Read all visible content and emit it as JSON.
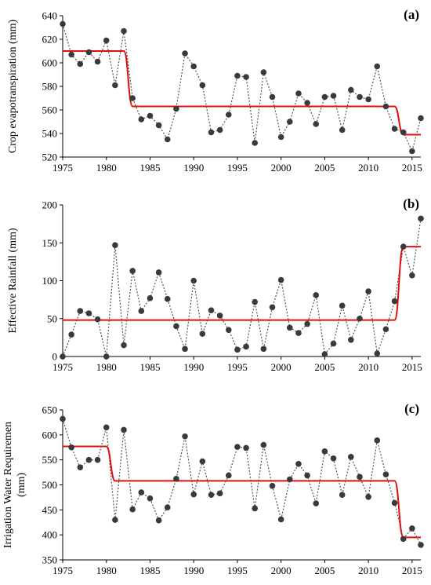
{
  "colors": {
    "points": "#3a3a3a",
    "connector": "#555555",
    "trend": "#e01010",
    "axis": "#000000"
  },
  "chart_data": [
    {
      "type": "line",
      "panel_label": "(a)",
      "ylabel": "Crop evapotranspiration (mm)",
      "xlim": [
        1975,
        2016
      ],
      "ylim": [
        520,
        640
      ],
      "xticks": [
        1975,
        1980,
        1985,
        1990,
        1995,
        2000,
        2005,
        2010,
        2015
      ],
      "yticks": [
        520,
        540,
        560,
        580,
        600,
        620,
        640
      ],
      "grid": false,
      "x": [
        1975,
        1976,
        1977,
        1978,
        1979,
        1980,
        1981,
        1982,
        1983,
        1984,
        1985,
        1986,
        1987,
        1988,
        1989,
        1990,
        1991,
        1992,
        1993,
        1994,
        1995,
        1996,
        1997,
        1998,
        1999,
        2000,
        2001,
        2002,
        2003,
        2004,
        2005,
        2006,
        2007,
        2008,
        2009,
        2010,
        2011,
        2012,
        2013,
        2014,
        2015,
        2016
      ],
      "series": [
        {
          "values": [
            633,
            607,
            599,
            609,
            601,
            619,
            581,
            627,
            570,
            552,
            555,
            547,
            535,
            561,
            608,
            597,
            581,
            541,
            543,
            556,
            589,
            588,
            532,
            592,
            571,
            537,
            550,
            574,
            566,
            548,
            571,
            572,
            543,
            577,
            571,
            569,
            597,
            563,
            544,
            541,
            525,
            553
          ]
        },
        {
          "kind": "step-trend",
          "segments": [
            {
              "from": 1975,
              "to": 1982,
              "value": 610
            },
            {
              "from": 1983,
              "to": 2013,
              "value": 563
            },
            {
              "from": 2014,
              "to": 2016,
              "value": 539
            }
          ]
        }
      ]
    },
    {
      "type": "line",
      "panel_label": "(b)",
      "ylabel": "Effective Rainfall (mm)",
      "xlim": [
        1975,
        2016
      ],
      "ylim": [
        0,
        200
      ],
      "xticks": [
        1975,
        1980,
        1985,
        1990,
        1995,
        2000,
        2005,
        2010,
        2015
      ],
      "yticks": [
        0,
        50,
        100,
        150,
        200
      ],
      "grid": false,
      "x": [
        1975,
        1976,
        1977,
        1978,
        1979,
        1980,
        1981,
        1982,
        1983,
        1984,
        1985,
        1986,
        1987,
        1988,
        1989,
        1990,
        1991,
        1992,
        1993,
        1994,
        1995,
        1996,
        1997,
        1998,
        1999,
        2000,
        2001,
        2002,
        2003,
        2004,
        2005,
        2006,
        2007,
        2008,
        2009,
        2010,
        2011,
        2012,
        2013,
        2014,
        2015,
        2016
      ],
      "series": [
        {
          "values": [
            0,
            29,
            60,
            57,
            49,
            0,
            147,
            15,
            113,
            60,
            77,
            111,
            76,
            40,
            10,
            100,
            30,
            61,
            54,
            35,
            9,
            13,
            72,
            10,
            65,
            101,
            38,
            31,
            43,
            81,
            3,
            17,
            67,
            22,
            50,
            86,
            4,
            36,
            73,
            145,
            107,
            182
          ]
        },
        {
          "kind": "step-trend",
          "segments": [
            {
              "from": 1975,
              "to": 2013,
              "value": 48
            },
            {
              "from": 2014,
              "to": 2016,
              "value": 145
            }
          ]
        }
      ]
    },
    {
      "type": "line",
      "panel_label": "(c)",
      "ylabel": "Irrigation Water Requiremen (mm)",
      "xlim": [
        1975,
        2016
      ],
      "ylim": [
        350,
        650
      ],
      "xticks": [
        1975,
        1980,
        1985,
        1990,
        1995,
        2000,
        2005,
        2010,
        2015
      ],
      "yticks": [
        350,
        400,
        450,
        500,
        550,
        600,
        650
      ],
      "grid": false,
      "x": [
        1975,
        1976,
        1977,
        1978,
        1979,
        1980,
        1981,
        1982,
        1983,
        1984,
        1985,
        1986,
        1987,
        1988,
        1989,
        1990,
        1991,
        1992,
        1993,
        1994,
        1995,
        1996,
        1997,
        1998,
        1999,
        2000,
        2001,
        2002,
        2003,
        2004,
        2005,
        2006,
        2007,
        2008,
        2009,
        2010,
        2011,
        2012,
        2013,
        2014,
        2015,
        2016
      ],
      "series": [
        {
          "values": [
            632,
            575,
            535,
            550,
            550,
            615,
            430,
            610,
            451,
            485,
            473,
            429,
            455,
            512,
            597,
            481,
            547,
            480,
            483,
            519,
            576,
            574,
            453,
            580,
            498,
            431,
            511,
            542,
            519,
            463,
            567,
            553,
            480,
            556,
            516,
            476,
            589,
            521,
            464,
            392,
            413,
            380
          ]
        },
        {
          "kind": "step-trend",
          "segments": [
            {
              "from": 1975,
              "to": 1980,
              "value": 577
            },
            {
              "from": 1981,
              "to": 2013,
              "value": 508
            },
            {
              "from": 2014,
              "to": 2016,
              "value": 395
            }
          ]
        }
      ]
    }
  ]
}
